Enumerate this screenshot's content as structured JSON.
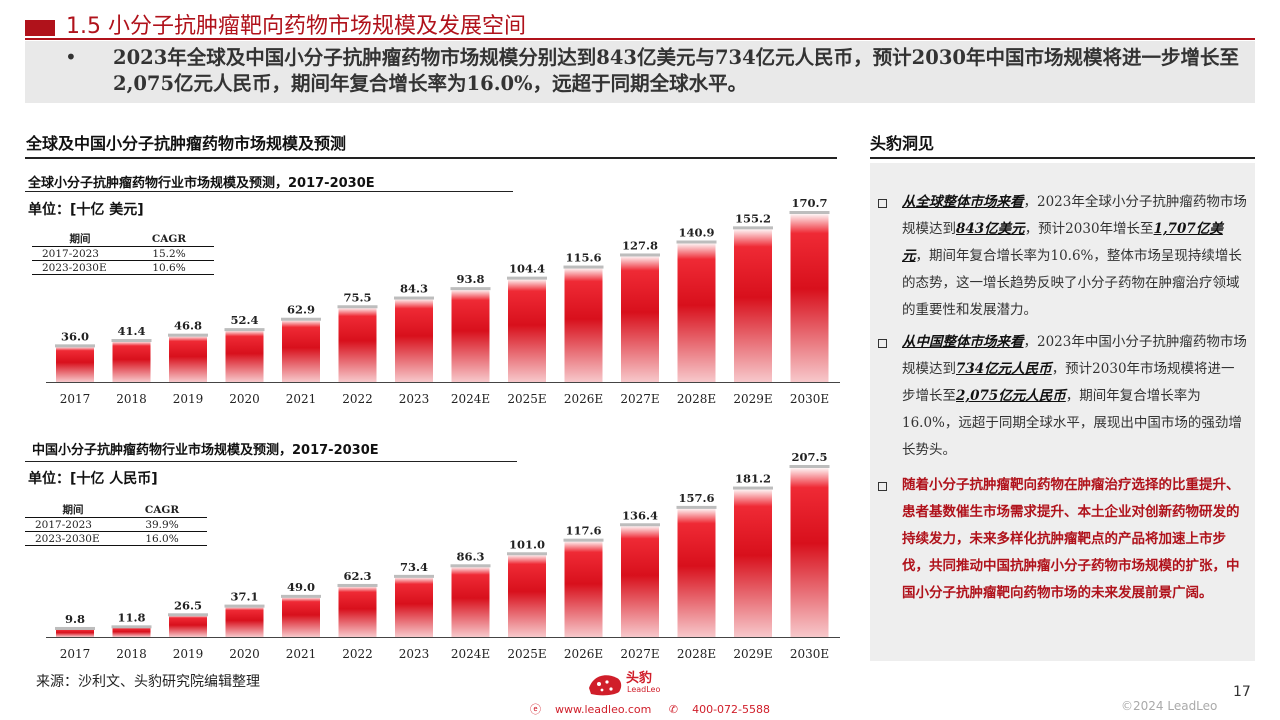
{
  "header": {
    "title": "1.5 小分子抗肿瘤靶向药物市场规模及发展空间",
    "summary_bullet": "•",
    "summary": "2023年全球及中国小分子抗肿瘤药物市场规模分别达到843亿美元与734亿元人民币，预计2030年中国市场规模将进一步增长至2,075亿元人民币，期间年复合增长率为16.0%，远超于同期全球水平。"
  },
  "left_section": {
    "title": "全球及中国小分子抗肿瘤药物市场规模及预测"
  },
  "right_section": {
    "title": "头豹洞见"
  },
  "cagr_tables": [
    {
      "header": [
        "期间",
        "CAGR"
      ],
      "rows": [
        [
          "2017-2023",
          "15.2%"
        ],
        [
          "2023-2030E",
          "10.6%"
        ]
      ]
    },
    {
      "header": [
        "期间",
        "CAGR"
      ],
      "rows": [
        [
          "2017-2023",
          "39.9%"
        ],
        [
          "2023-2030E",
          "16.0%"
        ]
      ]
    }
  ],
  "chart_data": [
    {
      "type": "bar",
      "title": "全球小分子抗肿瘤药物行业市场规模及预测，2017-2030E",
      "unit": "单位：[十亿 美元]",
      "categories": [
        "2017",
        "2018",
        "2019",
        "2020",
        "2021",
        "2022",
        "2023",
        "2024E",
        "2025E",
        "2026E",
        "2027E",
        "2028E",
        "2029E",
        "2030E"
      ],
      "values": [
        36.0,
        41.4,
        46.8,
        52.4,
        62.9,
        75.5,
        84.3,
        93.8,
        104.4,
        115.6,
        127.8,
        140.9,
        155.2,
        170.7
      ],
      "value_labels": [
        "36.0",
        "41.4",
        "46.8",
        "52.4",
        "62.9",
        "75.5",
        "84.3",
        "93.8",
        "104.4",
        "115.6",
        "127.8",
        "140.9",
        "155.2",
        "170.7"
      ],
      "ylim": [
        0,
        170.7
      ],
      "color": "#d8101c",
      "grid": false
    },
    {
      "type": "bar",
      "title": "中国小分子抗肿瘤药物行业市场规模及预测，2017-2030E",
      "unit": "单位：[十亿 人民币]",
      "categories": [
        "2017",
        "2018",
        "2019",
        "2020",
        "2021",
        "2022",
        "2023",
        "2024E",
        "2025E",
        "2026E",
        "2027E",
        "2028E",
        "2029E",
        "2030E"
      ],
      "values": [
        9.8,
        11.8,
        26.5,
        37.1,
        49.0,
        62.3,
        73.4,
        86.3,
        101.0,
        117.6,
        136.4,
        157.6,
        181.2,
        207.5
      ],
      "value_labels": [
        "9.8",
        "11.8",
        "26.5",
        "37.1",
        "49.0",
        "62.3",
        "73.4",
        "86.3",
        "101.0",
        "117.6",
        "136.4",
        "157.6",
        "181.2",
        "207.5"
      ],
      "ylim": [
        0,
        207.5
      ],
      "color": "#d8101c",
      "grid": false
    }
  ],
  "insights": [
    {
      "lead": "从全球整体市场来看",
      "p1": "，2023年全球小分子抗肿瘤药物市场规模达到",
      "h1": "843亿美元",
      "p2": "，预计2030年增长至",
      "h2": "1,707亿美元",
      "p3": "，期间年复合增长率为10.6%，整体市场呈现持续增长的态势，这一增长趋势反映了小分子药物在肿瘤治疗领域的重要性和发展潜力。"
    },
    {
      "lead": "从中国整体市场来看",
      "p1": "，2023年中国小分子抗肿瘤药物市场规模达到",
      "h1": "734亿元人民币",
      "p2": "，预计2030年市场规模将进一步增长至",
      "h2": "2,075亿元人民币",
      "p3": "，期间年复合增长率为16.0%，远超于同期全球水平，展现出中国市场的强劲增长势头。"
    },
    {
      "text": "随着小分子抗肿瘤靶向药物在肿瘤治疗选择的比重提升、患者基数催生市场需求提升、本土企业对创新药物研发的持续发力，未来多样化抗肿瘤靶点的产品将加速上市步伐，共同推动中国抗肿瘤小分子药物市场规模的扩张，中国小分子抗肿瘤靶向药物市场的未来发展前景广阔。"
    }
  ],
  "footer": {
    "source": "来源：沙利文、头豹研究院编辑整理",
    "logo_cn": "头豹",
    "logo_en": "LeadLeo",
    "website": "www.leadleo.com",
    "phone": "400-072-5588",
    "page": "17",
    "copyright": "©2024 LeadLeo"
  },
  "colors": {
    "brand_red": "#b0121b",
    "bar_red": "#d8101c"
  }
}
